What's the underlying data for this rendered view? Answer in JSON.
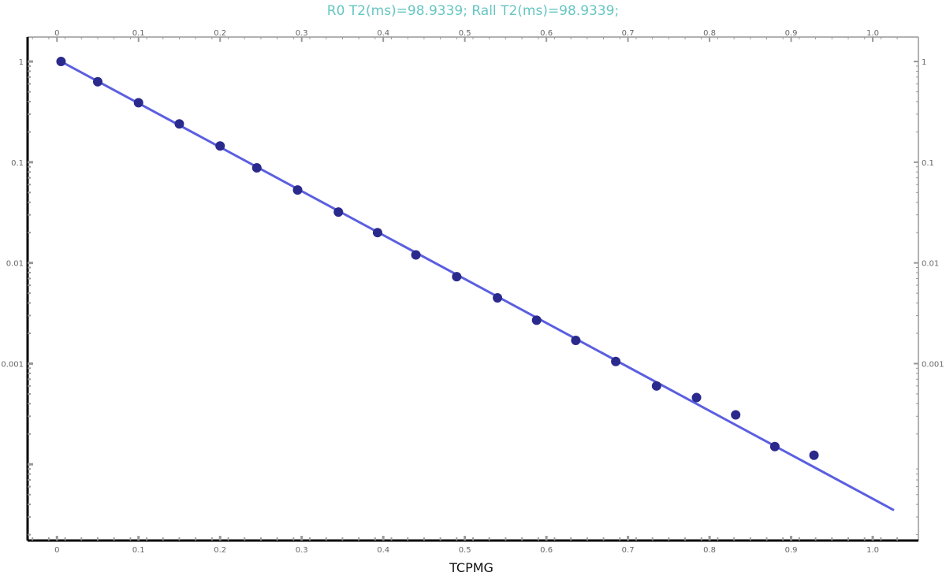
{
  "chart_data": {
    "type": "scatter",
    "title": "R0 T2(ms)=98.9339; Rall T2(ms)=98.9339;",
    "xlabel": "TCPMG",
    "ylabel": "",
    "xlim": [
      -0.036,
      1.056
    ],
    "ylim": [
      1.75e-05,
      1.75
    ],
    "yscale": "log",
    "grid": false,
    "x_ticks": [
      0,
      0.1,
      0.2,
      0.3,
      0.4,
      0.5,
      0.6,
      0.7,
      0.8,
      0.9,
      1.0
    ],
    "x_tick_labels": [
      "0",
      "0.1",
      "0.2",
      "0.3",
      "0.4",
      "0.5",
      "0.6",
      "0.7",
      "0.8",
      "0.9",
      "1.0"
    ],
    "y_ticks": [
      1,
      0.1,
      0.01,
      0.001
    ],
    "y_tick_labels": [
      "1",
      "0.1",
      "0.01",
      "0.001"
    ],
    "series": [
      {
        "kind": "points",
        "x": [
          0.005,
          0.05,
          0.1,
          0.15,
          0.2,
          0.245,
          0.295,
          0.345,
          0.393,
          0.44,
          0.49,
          0.54,
          0.588,
          0.636,
          0.685,
          0.735,
          0.784,
          0.832,
          0.88,
          0.928
        ],
        "y": [
          1.0,
          0.63,
          0.39,
          0.24,
          0.145,
          0.088,
          0.053,
          0.032,
          0.02,
          0.012,
          0.0073,
          0.0045,
          0.0027,
          0.0017,
          0.00105,
          0.0006,
          0.00046,
          0.00031,
          0.00015,
          0.000123
        ]
      },
      {
        "kind": "fit-line",
        "x": [
          0.005,
          1.025
        ],
        "y": [
          1.0,
          3.54e-05
        ]
      }
    ],
    "colors": {
      "title": "#66c6c2",
      "points": "#2a2a8c",
      "fit_line": "#5b5fe0",
      "axis": "#000000",
      "ticks": "#999999",
      "tick_labels": "#666666"
    }
  }
}
